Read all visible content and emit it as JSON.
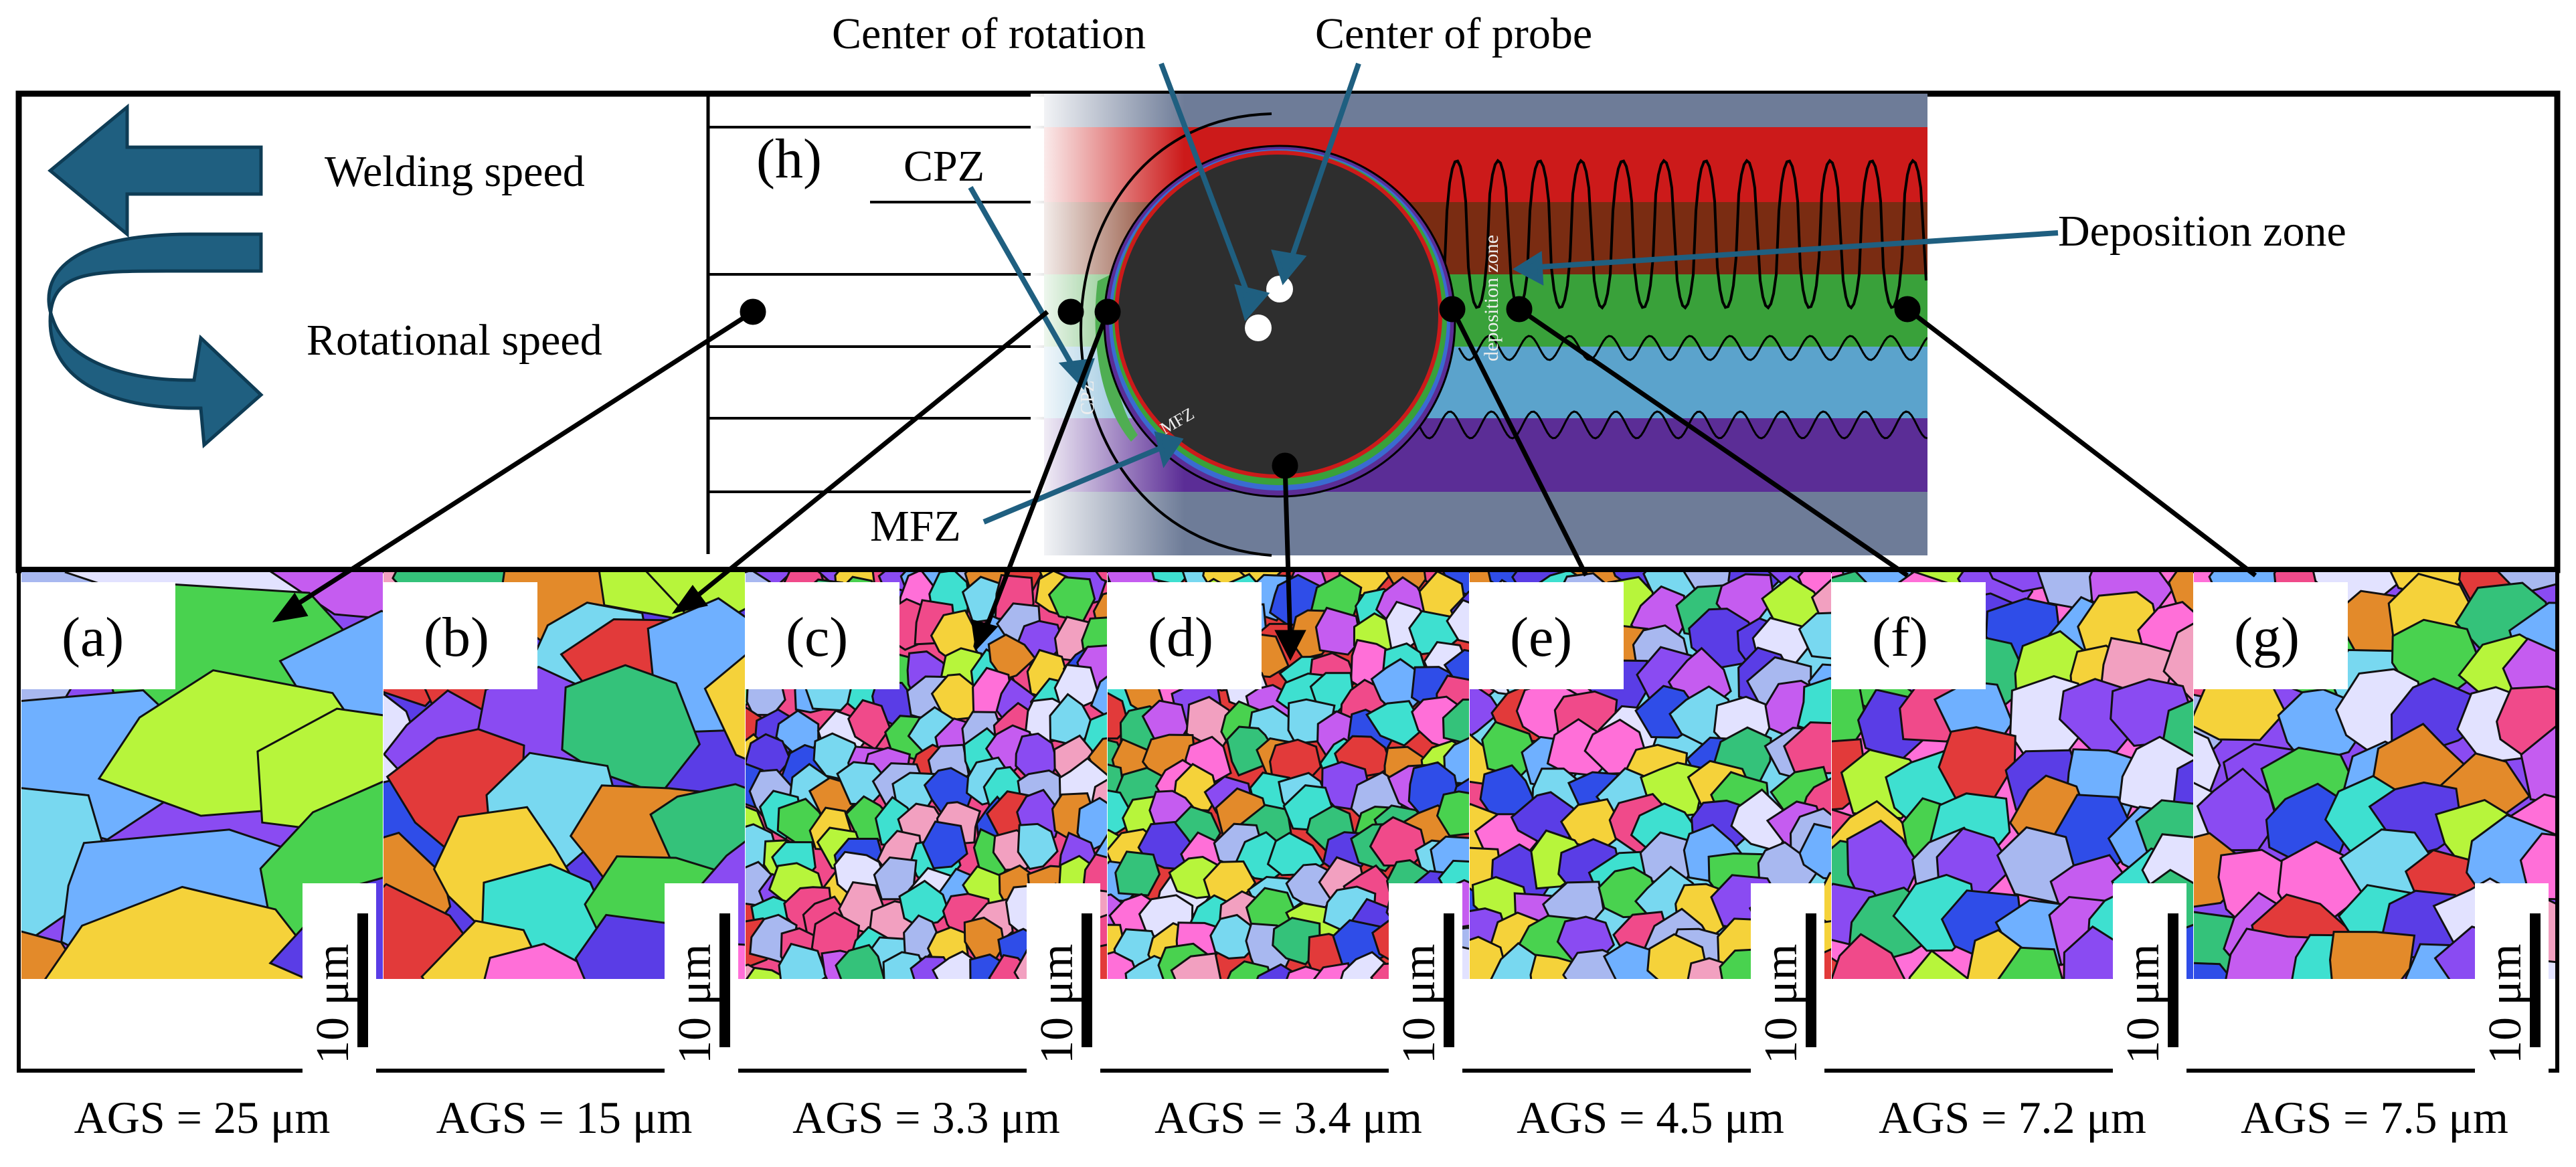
{
  "header_labels": {
    "center_of_rotation": "Center of rotation",
    "center_of_probe": "Center of probe"
  },
  "legend": {
    "welding_speed": "Welding speed",
    "rotational_speed": "Rotational speed"
  },
  "schematic": {
    "label": "(h)",
    "cpz_label": "CPZ",
    "mfz_label": "MFZ",
    "deposition_zone_label": "Deposition zone",
    "inner_text_cpz": "CPZ",
    "inner_text_mfz": "MFZ",
    "inner_text_deposition": "deposition zone"
  },
  "panels": [
    {
      "label": "(a)",
      "ags": "AGS = 25 μm",
      "scale": "10 μm",
      "grains": 7
    },
    {
      "label": "(b)",
      "ags": "AGS = 15 μm",
      "scale": "10 μm",
      "grains": 18
    },
    {
      "label": "(c)",
      "ags": "AGS = 3.3 μm",
      "scale": "10 μm",
      "grains": 150
    },
    {
      "label": "(d)",
      "ags": "AGS = 3.4 μm",
      "scale": "10 μm",
      "grains": 140
    },
    {
      "label": "(e)",
      "ags": "AGS = 4.5 μm",
      "scale": "10 μm",
      "grains": 95
    },
    {
      "label": "(f)",
      "ags": "AGS = 7.2 μm",
      "scale": "10 μm",
      "grains": 55
    },
    {
      "label": "(g)",
      "ags": "AGS = 7.5 μm",
      "scale": "10 μm",
      "grains": 45
    }
  ],
  "colors": {
    "arrow_blue": "#1f5f80",
    "red_zone": "#cc1a1a",
    "brown_zone": "#7a2c12",
    "green_zone": "#39a13a",
    "lightblue_zone": "#5ba3cc",
    "purple_zone": "#5b2d96",
    "gray_zone": "#6e7c98",
    "probe": "#2e2e2e"
  }
}
